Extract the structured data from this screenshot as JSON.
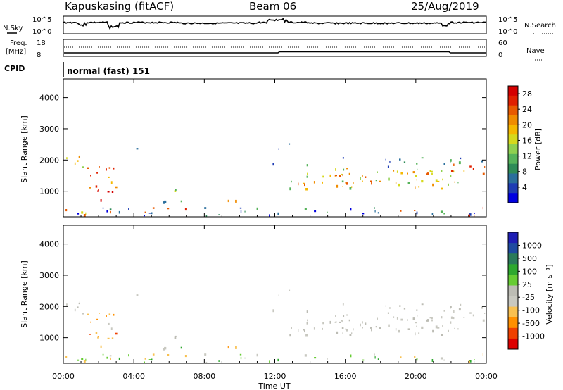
{
  "header": {
    "station": "Kapuskasing (fitACF)",
    "beam": "Beam 06",
    "date": "25/Aug/2019"
  },
  "strip_labels": {
    "nsky": "N.Sky",
    "nsky_ticks": [
      "10^5",
      "10^0"
    ],
    "nsearch": "N.Search",
    "nsearch_ticks": [
      "10^5",
      "10^0"
    ],
    "freq": "Freq.",
    "freq_unit": "[MHz]",
    "freq_ticks": [
      "18",
      "8"
    ],
    "nave": "Nave",
    "nave_ticks": [
      "60",
      "0"
    ],
    "cpid": "CPID",
    "cpid_value": "normal (fast) 151"
  },
  "colors": {
    "power": [
      "#0000e0",
      "#1e3cb4",
      "#2a6e9c",
      "#2e8b57",
      "#56b35a",
      "#8fd04f",
      "#d6d91c",
      "#f5b800",
      "#f08c00",
      "#e85a00",
      "#e02000",
      "#d40000"
    ],
    "velocity": [
      "#dc0000",
      "#f04000",
      "#ff9000",
      "#f8c050",
      "#c8c8c0",
      "#bcbcb4",
      "#66cc33",
      "#2ea82e",
      "#2a7a5a",
      "#1e4aa0",
      "#1e1eb4"
    ]
  },
  "chart_data": [
    {
      "type": "heatmap",
      "title": "Power",
      "ylabel": "Slant Range [km]",
      "xlabel": "",
      "x_ticks": [
        "00:00",
        "04:00",
        "08:00",
        "12:00",
        "16:00",
        "20:00",
        "00:00"
      ],
      "xlim": [
        0,
        24
      ],
      "y_ticks": [
        "1000",
        "2000",
        "3000",
        "4000"
      ],
      "ylim": [
        180,
        4600
      ],
      "colorbar": {
        "label": "Power [dB]",
        "ticks": [
          "4",
          "8",
          "12",
          "16",
          "20",
          "24",
          "28"
        ],
        "range": [
          0,
          30
        ]
      }
    },
    {
      "type": "heatmap",
      "title": "Velocity",
      "ylabel": "Slant Range [km]",
      "xlabel": "Time UT",
      "x_ticks": [
        "00:00",
        "04:00",
        "08:00",
        "12:00",
        "16:00",
        "20:00",
        "00:00"
      ],
      "xlim": [
        0,
        24
      ],
      "y_ticks": [
        "1000",
        "2000",
        "3000",
        "4000"
      ],
      "ylim": [
        180,
        4600
      ],
      "colorbar": {
        "label": "Velocity [m s⁻¹]",
        "ticks": [
          "1000",
          "500",
          "100",
          "25",
          "-25",
          "-100",
          "-500",
          "-1000"
        ]
      }
    }
  ]
}
